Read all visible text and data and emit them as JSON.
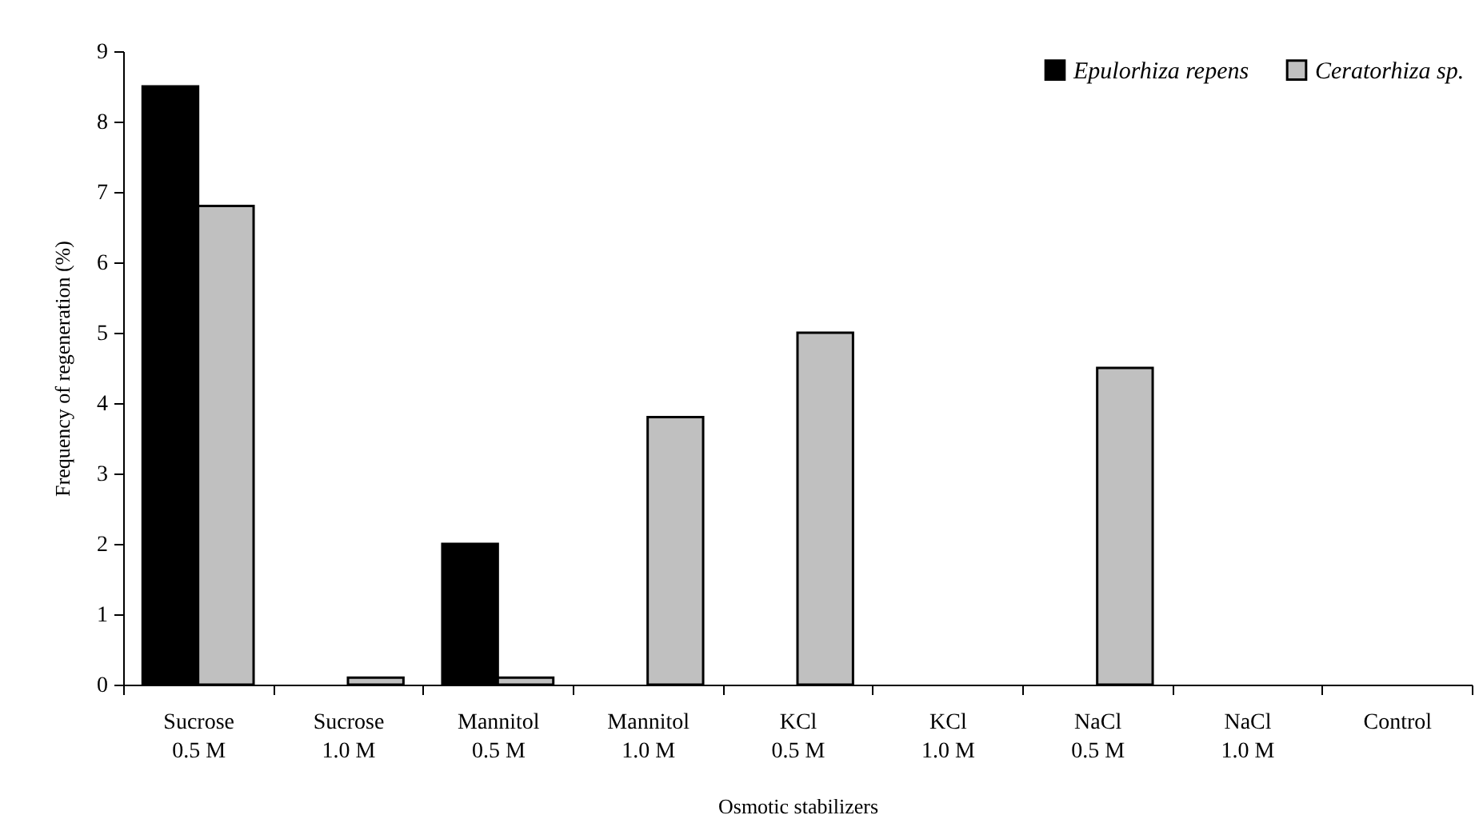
{
  "chart_data": {
    "type": "bar",
    "xlabel": "Osmotic stabilizers",
    "ylabel": "Frequency of regeneration (%)",
    "categories": [
      "Sucrose\n0.5 M",
      "Sucrose\n1.0 M",
      "Mannitol\n0.5 M",
      "Mannitol\n1.0 M",
      "KCl\n0.5 M",
      "KCl\n1.0 M",
      "NaCl\n0.5  M",
      "NaCl\n1.0  M",
      "Control"
    ],
    "series": [
      {
        "name": "Epulorhiza repens",
        "color": "#000000",
        "values": [
          8.5,
          null,
          2.0,
          null,
          null,
          null,
          null,
          null,
          null
        ]
      },
      {
        "name": "Ceratorhiza sp.",
        "color": "#c0c0c0",
        "values": [
          6.8,
          0.1,
          0.1,
          3.8,
          5.0,
          null,
          4.5,
          null,
          null
        ]
      }
    ],
    "ylim": [
      0,
      9
    ],
    "yticks": [
      0,
      1,
      2,
      3,
      4,
      5,
      6,
      7,
      8,
      9
    ],
    "grid": false,
    "legend": "top right"
  }
}
